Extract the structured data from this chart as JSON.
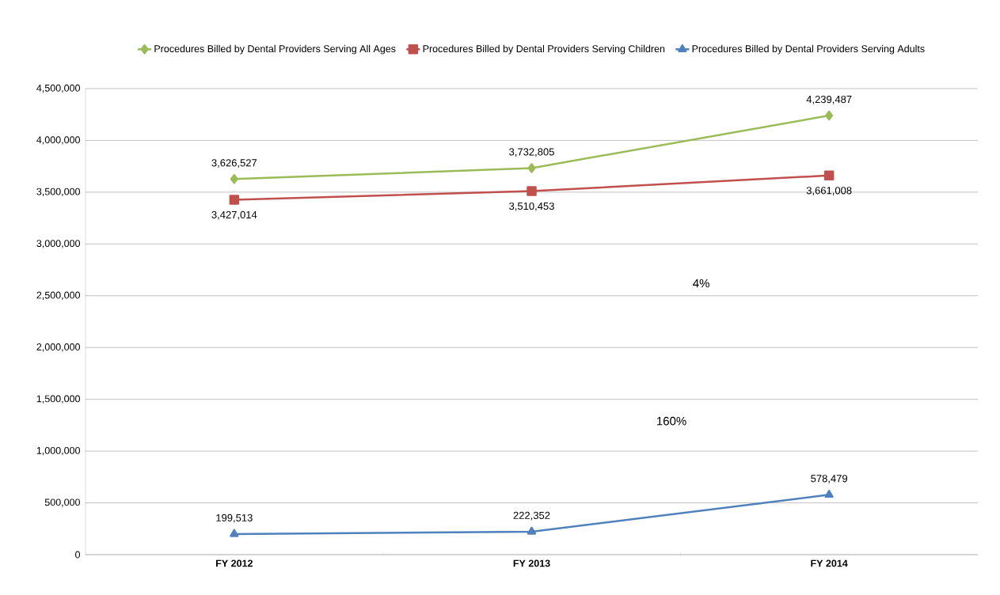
{
  "chart_data": {
    "type": "line",
    "categories": [
      "FY 2012",
      "FY 2013",
      "FY 2014"
    ],
    "series": [
      {
        "name": "Procedures Billed by Dental Providers Serving All Ages",
        "color": "#9bbb59",
        "marker": "diamond",
        "values": [
          3626527,
          3732805,
          4239487
        ],
        "value_labels": [
          "3,626,527",
          "3,732,805",
          "4,239,487"
        ]
      },
      {
        "name": "Procedures Billed by Dental Providers Serving Children",
        "color": "#c0504d",
        "marker": "square",
        "values": [
          3427014,
          3510453,
          3661008
        ],
        "value_labels": [
          "3,427,014",
          "3,510,453",
          "3,661,008"
        ]
      },
      {
        "name": "Procedures Billed by Dental Providers Serving Adults",
        "color": "#4f81bd",
        "marker": "triangle",
        "values": [
          199513,
          222352,
          578479
        ],
        "value_labels": [
          "199,513",
          "222,352",
          "578,479"
        ]
      }
    ],
    "ylim": [
      0,
      4500000
    ],
    "yticks": [
      0,
      {
        "value": 500000,
        "label": "500,000"
      },
      {
        "value": 1000000,
        "label": "1,000,000"
      },
      {
        "value": 1500000,
        "label": "1,500,000"
      },
      {
        "value": 2000000,
        "label": "2,000,000"
      },
      {
        "value": 2500000,
        "label": "2,500,000"
      },
      {
        "value": 3000000,
        "label": "3,000,000"
      },
      {
        "value": 3500000,
        "label": "3,500,000"
      },
      {
        "value": 4000000,
        "label": "4,000,000"
      },
      {
        "value": 4500000,
        "label": "4,500,000"
      }
    ],
    "grid": "y",
    "legend": "top",
    "annotations": [
      "4%",
      "160%"
    ]
  }
}
